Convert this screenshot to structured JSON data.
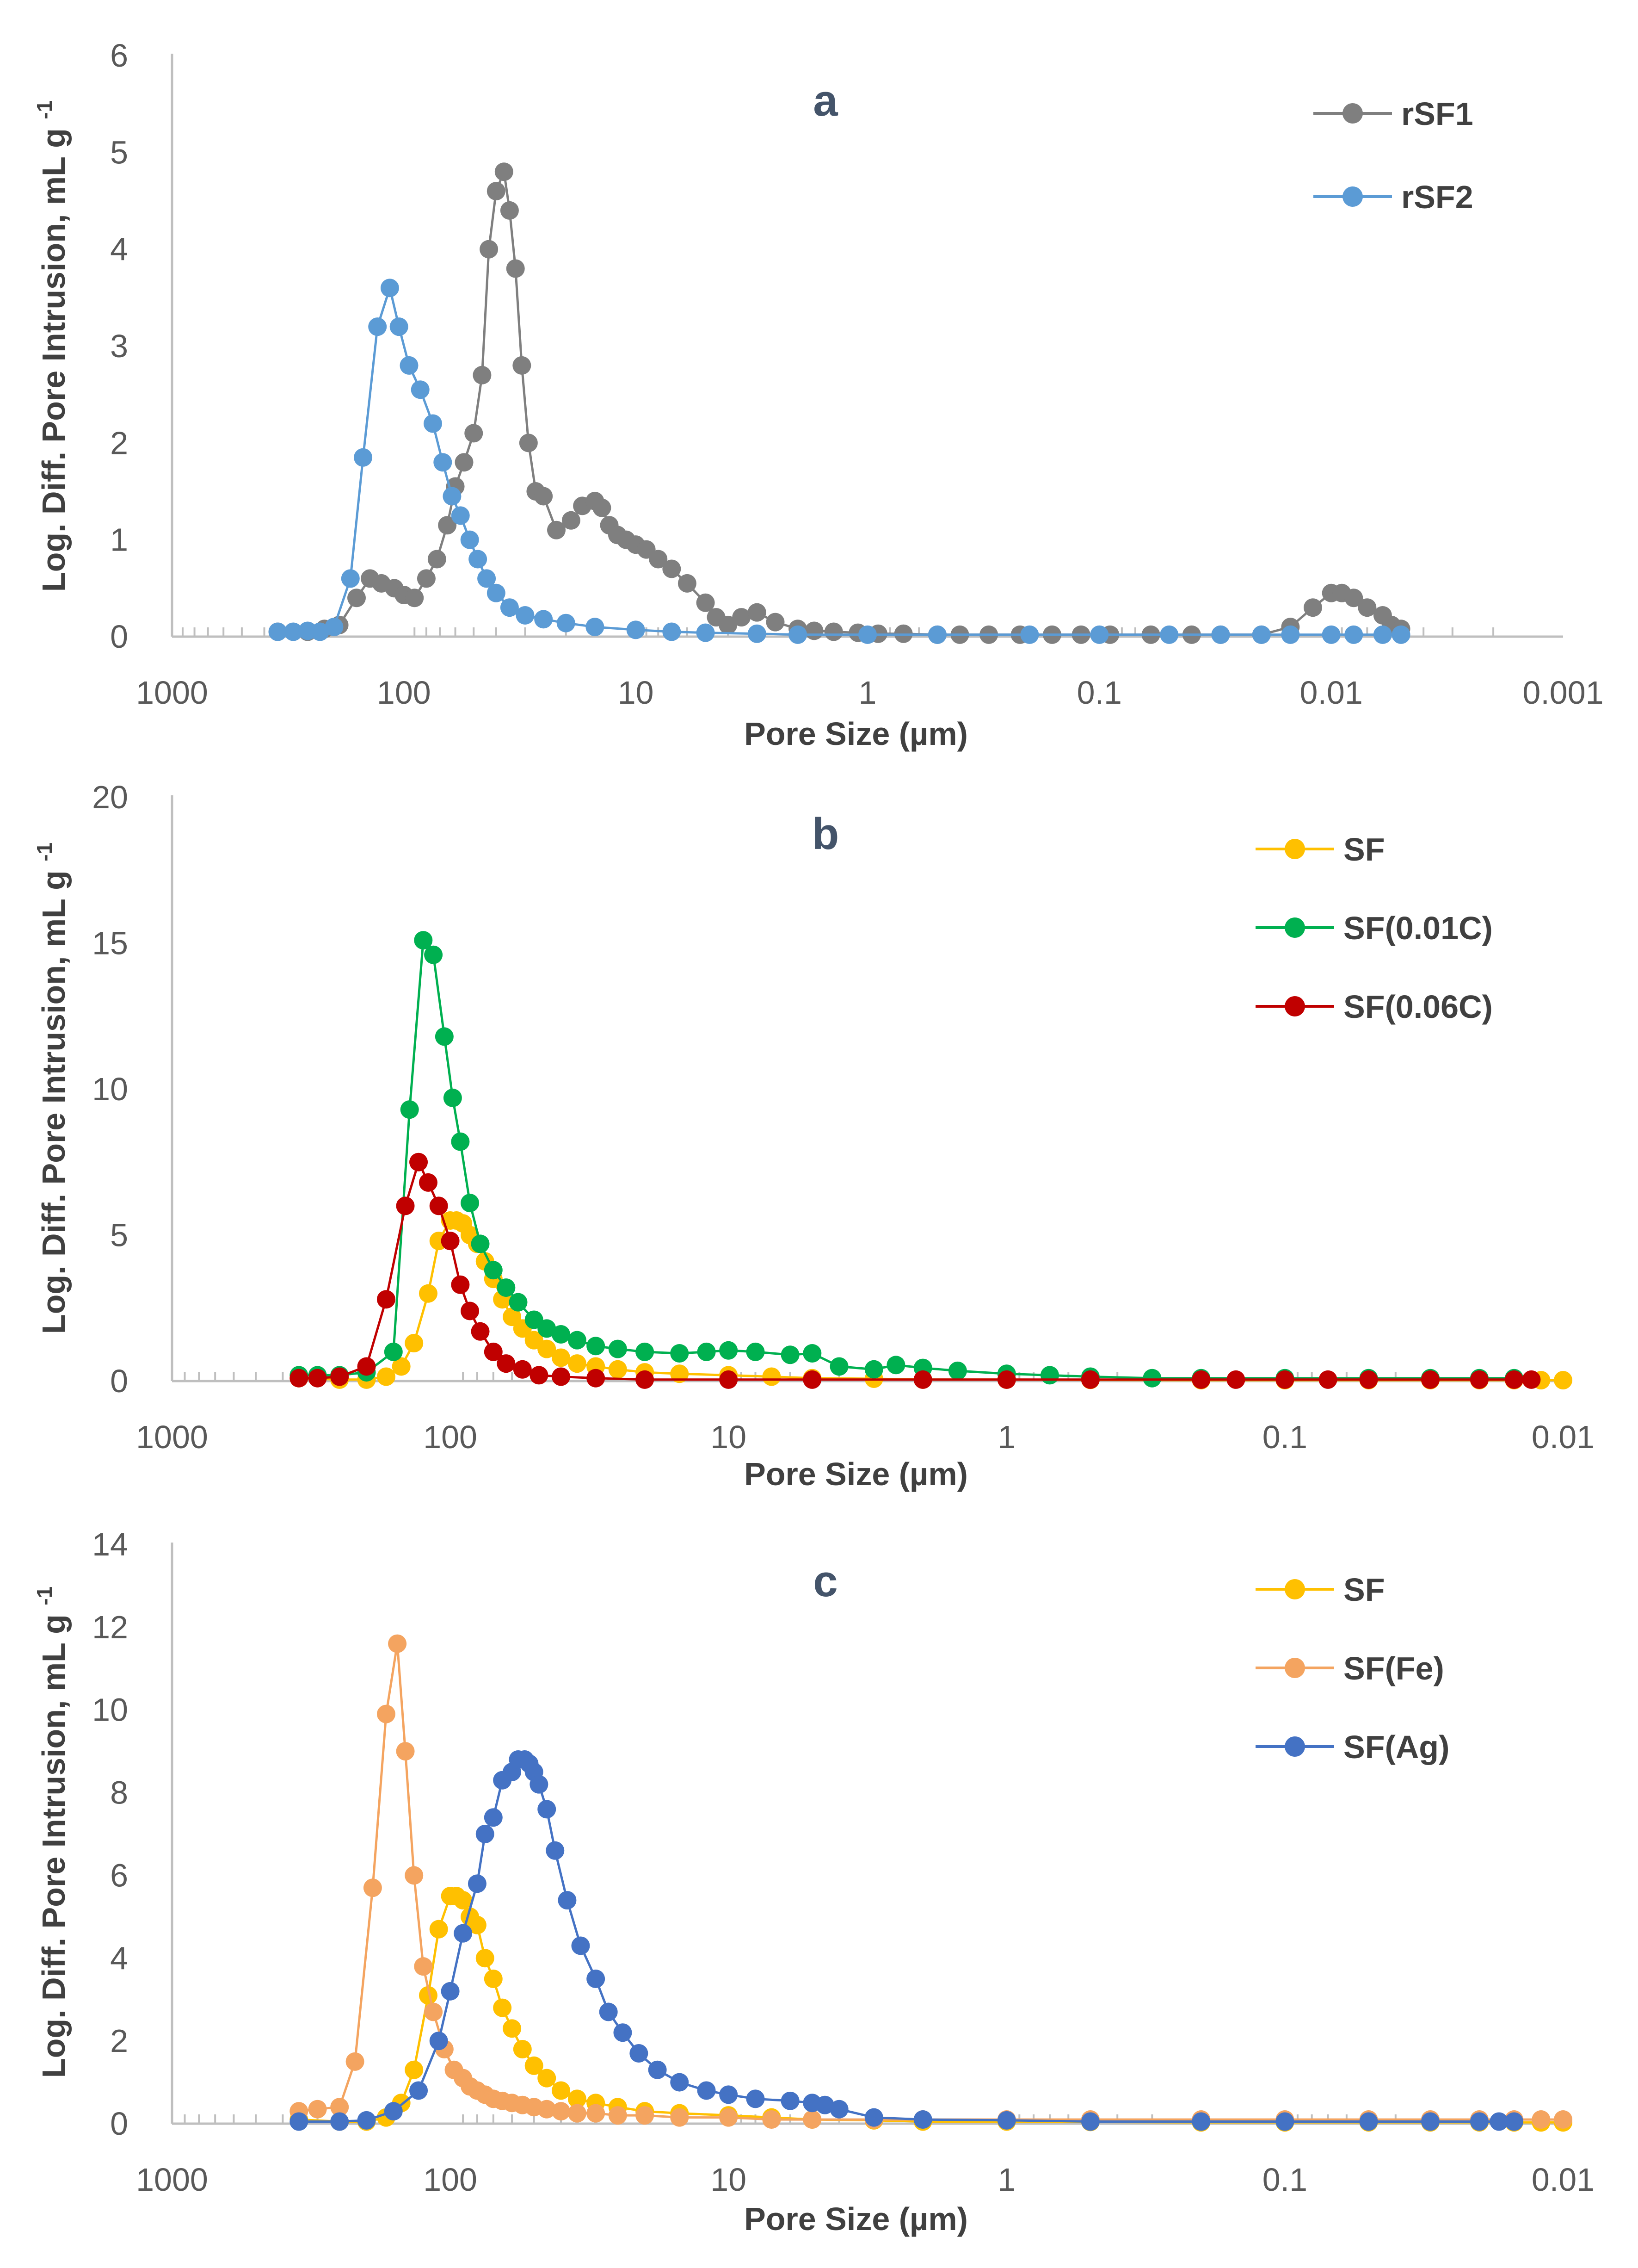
{
  "chart_data": [
    {
      "type": "line",
      "panel": "a",
      "title": "a",
      "xlabel": "Pore Size (µm)",
      "ylabel": "Log. Diff. Pore Intrusion, mL g",
      "ylabel_superscript": "-1",
      "xscale": "log",
      "x_reversed": true,
      "xlim": [
        1000,
        0.001
      ],
      "ylim": [
        0,
        6
      ],
      "x_tick_labels": [
        "1000",
        "100",
        "10",
        "1",
        "0.1",
        "0.01",
        "0.001"
      ],
      "y_tick_labels": [
        "0",
        "1",
        "2",
        "3",
        "4",
        "5",
        "6"
      ],
      "legend_position": "top-right",
      "series": [
        {
          "name": "rSF1",
          "color": "#7F7F7F",
          "x": [
            350,
            260,
            220,
            190,
            160,
            140,
            125,
            110,
            100,
            90,
            80,
            72,
            65,
            60,
            55,
            50,
            46,
            43,
            40,
            37,
            35,
            33,
            31,
            29,
            27,
            25,
            22,
            19,
            17,
            15,
            14,
            13,
            12,
            11,
            10,
            9,
            8,
            7,
            6,
            5,
            4.5,
            4,
            3.5,
            3,
            2.5,
            2,
            1.7,
            1.4,
            1.1,
            0.9,
            0.7,
            0.5,
            0.4,
            0.3,
            0.22,
            0.16,
            0.12,
            0.09,
            0.06,
            0.04,
            0.03,
            0.02,
            0.015,
            0.012,
            0.01,
            0.009,
            0.008,
            0.007,
            0.006,
            0.0055,
            0.005
          ],
          "y": [
            0.05,
            0.05,
            0.08,
            0.12,
            0.4,
            0.6,
            0.55,
            0.5,
            0.43,
            0.4,
            0.6,
            0.8,
            1.15,
            1.55,
            1.8,
            2.1,
            2.7,
            4.0,
            4.6,
            4.8,
            4.4,
            3.8,
            2.8,
            2.0,
            1.5,
            1.45,
            1.1,
            1.2,
            1.35,
            1.4,
            1.33,
            1.15,
            1.05,
            1.0,
            0.95,
            0.9,
            0.8,
            0.7,
            0.55,
            0.35,
            0.2,
            0.12,
            0.2,
            0.25,
            0.15,
            0.08,
            0.06,
            0.05,
            0.04,
            0.03,
            0.03,
            0.02,
            0.02,
            0.02,
            0.02,
            0.02,
            0.02,
            0.02,
            0.02,
            0.02,
            0.02,
            0.02,
            0.1,
            0.3,
            0.45,
            0.45,
            0.4,
            0.3,
            0.22,
            0.12,
            0.08
          ]
        },
        {
          "name": "rSF2",
          "color": "#5B9BD5",
          "x": [
            350,
            300,
            260,
            230,
            200,
            170,
            150,
            130,
            115,
            105,
            95,
            85,
            75,
            68,
            62,
            57,
            52,
            48,
            44,
            40,
            35,
            30,
            25,
            20,
            15,
            10,
            7,
            5,
            3,
            2,
            1,
            0.5,
            0.2,
            0.1,
            0.05,
            0.03,
            0.02,
            0.015,
            0.01,
            0.008,
            0.006,
            0.005
          ],
          "y": [
            0.05,
            0.05,
            0.06,
            0.05,
            0.1,
            0.6,
            1.85,
            3.2,
            3.6,
            3.2,
            2.8,
            2.55,
            2.2,
            1.8,
            1.45,
            1.25,
            1.0,
            0.8,
            0.6,
            0.45,
            0.3,
            0.22,
            0.18,
            0.14,
            0.1,
            0.07,
            0.05,
            0.04,
            0.03,
            0.02,
            0.02,
            0.02,
            0.02,
            0.02,
            0.02,
            0.02,
            0.02,
            0.02,
            0.02,
            0.02,
            0.02,
            0.02
          ]
        }
      ]
    },
    {
      "type": "line",
      "panel": "b",
      "title": "b",
      "xlabel": "Pore Size (µm)",
      "ylabel": "Log. Diff. Pore Intrusion, mL g",
      "ylabel_superscript": "-1",
      "xscale": "log",
      "x_reversed": true,
      "xlim": [
        1000,
        0.01
      ],
      "ylim": [
        0,
        20
      ],
      "x_tick_labels": [
        "1000",
        "100",
        "10",
        "1",
        "0.1",
        "0.01"
      ],
      "y_tick_labels": [
        "0",
        "5",
        "10",
        "15",
        "20"
      ],
      "legend_position": "top-right",
      "series": [
        {
          "name": "SF",
          "color": "#FFC000",
          "x": [
            350,
            250,
            200,
            170,
            150,
            135,
            120,
            110,
            100,
            95,
            90,
            85,
            80,
            75,
            70,
            65,
            60,
            55,
            50,
            45,
            40,
            35,
            30,
            25,
            20,
            15,
            10,
            7,
            5,
            3,
            2,
            1,
            0.5,
            0.2,
            0.1,
            0.05,
            0.03,
            0.02,
            0.015,
            0.012,
            0.01
          ],
          "y": [
            0.1,
            0.05,
            0.05,
            0.15,
            0.5,
            1.3,
            3.0,
            4.8,
            5.5,
            5.5,
            5.4,
            5.0,
            4.7,
            4.1,
            3.5,
            2.8,
            2.2,
            1.8,
            1.4,
            1.1,
            0.8,
            0.6,
            0.5,
            0.4,
            0.3,
            0.25,
            0.2,
            0.15,
            0.1,
            0.08,
            0.05,
            0.05,
            0.04,
            0.03,
            0.03,
            0.03,
            0.03,
            0.03,
            0.03,
            0.03,
            0.03
          ]
        },
        {
          "name": "SF(0.01C)",
          "color": "#00B050",
          "x": [
            350,
            300,
            250,
            200,
            160,
            140,
            125,
            115,
            105,
            98,
            92,
            85,
            78,
            70,
            63,
            57,
            50,
            45,
            40,
            35,
            30,
            25,
            20,
            15,
            12,
            10,
            8,
            6,
            5,
            4,
            3,
            2.5,
            2,
            1.5,
            1,
            0.7,
            0.5,
            0.3,
            0.2,
            0.1,
            0.05,
            0.03,
            0.02,
            0.015
          ],
          "y": [
            0.2,
            0.2,
            0.2,
            0.3,
            1.0,
            9.3,
            15.1,
            14.6,
            11.8,
            9.7,
            8.2,
            6.1,
            4.7,
            3.8,
            3.2,
            2.7,
            2.1,
            1.8,
            1.6,
            1.4,
            1.2,
            1.1,
            1.0,
            0.95,
            1.0,
            1.05,
            1.0,
            0.9,
            0.95,
            0.5,
            0.4,
            0.55,
            0.45,
            0.35,
            0.25,
            0.2,
            0.15,
            0.1,
            0.1,
            0.1,
            0.1,
            0.1,
            0.1,
            0.1
          ]
        },
        {
          "name": "SF(0.06C)",
          "color": "#C00000",
          "x": [
            350,
            300,
            250,
            200,
            170,
            145,
            130,
            120,
            110,
            100,
            92,
            85,
            78,
            70,
            63,
            55,
            48,
            40,
            30,
            20,
            10,
            5,
            2,
            1,
            0.5,
            0.2,
            0.15,
            0.1,
            0.07,
            0.05,
            0.03,
            0.02,
            0.015,
            0.013
          ],
          "y": [
            0.1,
            0.1,
            0.15,
            0.5,
            2.8,
            6.0,
            7.5,
            6.8,
            6.0,
            4.8,
            3.3,
            2.4,
            1.7,
            1.0,
            0.6,
            0.4,
            0.2,
            0.15,
            0.1,
            0.05,
            0.05,
            0.05,
            0.05,
            0.05,
            0.05,
            0.05,
            0.05,
            0.05,
            0.05,
            0.05,
            0.05,
            0.05,
            0.05,
            0.05
          ]
        }
      ]
    },
    {
      "type": "line",
      "panel": "c",
      "title": "c",
      "xlabel": "Pore Size (µm)",
      "ylabel": "Log. Diff. Pore Intrusion, mL g",
      "ylabel_superscript": "-1",
      "xscale": "log",
      "x_reversed": true,
      "xlim": [
        1000,
        0.01
      ],
      "ylim": [
        0,
        14
      ],
      "x_tick_labels": [
        "1000",
        "100",
        "10",
        "1",
        "0.1",
        "0.01"
      ],
      "y_tick_labels": [
        "0",
        "2",
        "4",
        "6",
        "8",
        "10",
        "12",
        "14"
      ],
      "legend_position": "top-right",
      "series": [
        {
          "name": "SF",
          "color": "#FFC000",
          "x": [
            350,
            250,
            200,
            170,
            150,
            135,
            120,
            110,
            100,
            95,
            90,
            85,
            80,
            75,
            70,
            65,
            60,
            55,
            50,
            45,
            40,
            35,
            30,
            25,
            20,
            15,
            10,
            7,
            5,
            3,
            2,
            1,
            0.5,
            0.2,
            0.1,
            0.05,
            0.03,
            0.02,
            0.015,
            0.012,
            0.01
          ],
          "y": [
            0.1,
            0.05,
            0.05,
            0.15,
            0.5,
            1.3,
            3.1,
            4.7,
            5.5,
            5.5,
            5.4,
            5.0,
            4.8,
            4.0,
            3.5,
            2.8,
            2.3,
            1.8,
            1.4,
            1.1,
            0.8,
            0.6,
            0.5,
            0.4,
            0.3,
            0.25,
            0.2,
            0.15,
            0.1,
            0.08,
            0.05,
            0.05,
            0.04,
            0.03,
            0.03,
            0.03,
            0.03,
            0.03,
            0.03,
            0.03,
            0.03
          ]
        },
        {
          "name": "SF(Fe)",
          "color": "#F4A460",
          "x": [
            350,
            300,
            250,
            220,
            190,
            170,
            155,
            145,
            135,
            125,
            115,
            105,
            97,
            90,
            85,
            80,
            75,
            70,
            65,
            60,
            55,
            50,
            45,
            40,
            35,
            30,
            25,
            20,
            15,
            10,
            7,
            5,
            3,
            2,
            1,
            0.5,
            0.2,
            0.1,
            0.05,
            0.03,
            0.02,
            0.015,
            0.012,
            0.01
          ],
          "y": [
            0.3,
            0.35,
            0.4,
            1.5,
            5.7,
            9.9,
            11.6,
            9.0,
            6.0,
            3.8,
            2.7,
            1.8,
            1.3,
            1.1,
            0.9,
            0.8,
            0.7,
            0.6,
            0.55,
            0.5,
            0.45,
            0.4,
            0.35,
            0.3,
            0.25,
            0.25,
            0.2,
            0.2,
            0.15,
            0.15,
            0.1,
            0.1,
            0.1,
            0.1,
            0.1,
            0.1,
            0.1,
            0.1,
            0.1,
            0.1,
            0.1,
            0.1,
            0.1,
            0.1
          ]
        },
        {
          "name": "SF(Ag)",
          "color": "#4472C4",
          "x": [
            350,
            250,
            200,
            160,
            130,
            110,
            100,
            90,
            80,
            75,
            70,
            65,
            60,
            57,
            54,
            52,
            50,
            48,
            45,
            42,
            38,
            34,
            30,
            27,
            24,
            21,
            18,
            15,
            12,
            10,
            8,
            6,
            5,
            4.5,
            4,
            3,
            2,
            1,
            0.5,
            0.2,
            0.1,
            0.05,
            0.03,
            0.02,
            0.017,
            0.015
          ],
          "y": [
            0.05,
            0.05,
            0.08,
            0.3,
            0.8,
            2.0,
            3.2,
            4.6,
            5.8,
            7.0,
            7.4,
            8.3,
            8.5,
            8.8,
            8.8,
            8.7,
            8.5,
            8.2,
            7.6,
            6.6,
            5.4,
            4.3,
            3.5,
            2.7,
            2.2,
            1.7,
            1.3,
            1.0,
            0.8,
            0.7,
            0.6,
            0.55,
            0.5,
            0.45,
            0.35,
            0.15,
            0.1,
            0.08,
            0.05,
            0.05,
            0.05,
            0.05,
            0.05,
            0.05,
            0.05,
            0.05
          ]
        }
      ]
    }
  ]
}
